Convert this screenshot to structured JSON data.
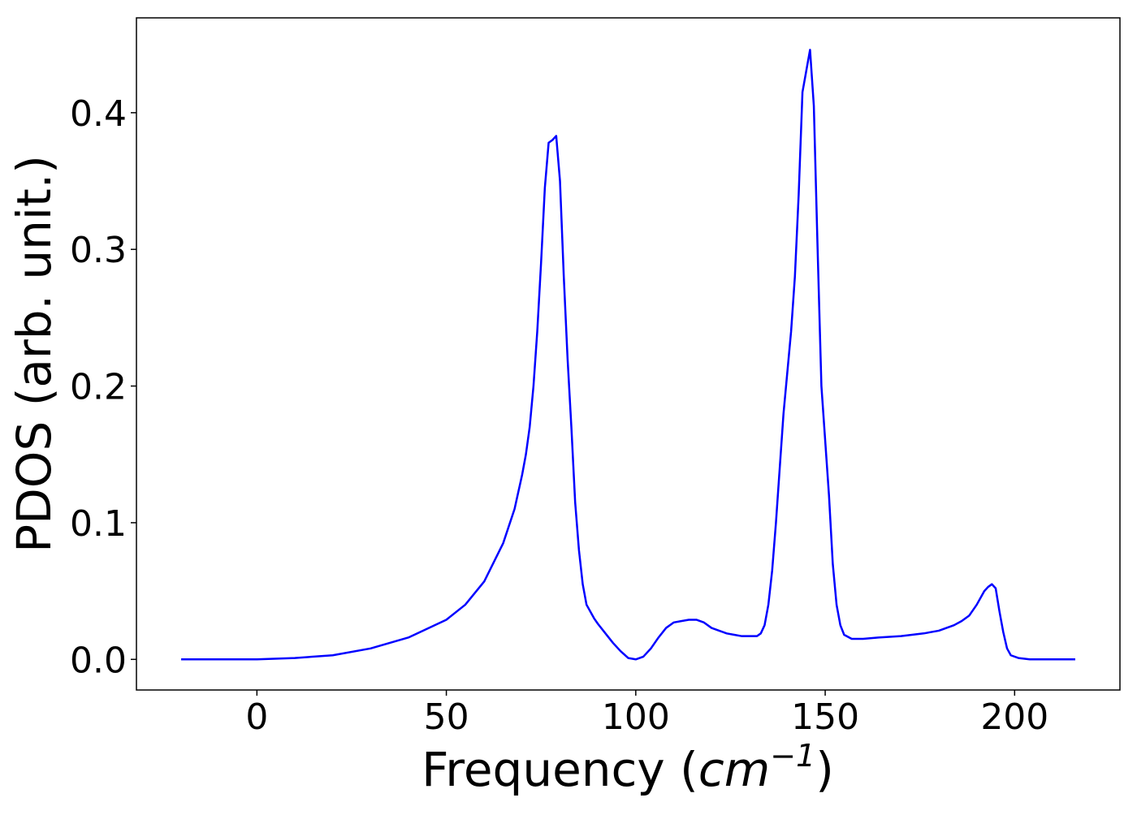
{
  "chart_data": {
    "type": "line",
    "xlabel": {
      "text": "Frequency (",
      "math": "cm",
      "sup": "−1",
      "close": ")"
    },
    "ylabel": "PDOS (arb. unit.)",
    "xlim": [
      -31.8,
      227.8
    ],
    "xticks": [
      0,
      50,
      100,
      150,
      200
    ],
    "ylim": [
      -0.0224,
      0.4694
    ],
    "yticks": [
      {
        "value": 0,
        "label": "0.0"
      },
      0.1,
      0.2,
      0.3,
      0.4
    ],
    "x": [
      -20,
      -10,
      0,
      10,
      20,
      30,
      40,
      50,
      55,
      60,
      65,
      68,
      70,
      71,
      72,
      73,
      74,
      75,
      76,
      77,
      78,
      79,
      80,
      81,
      82,
      83,
      84,
      85,
      86,
      87,
      89,
      90,
      92,
      94,
      96,
      98,
      100,
      102,
      104,
      106,
      108,
      110,
      112,
      114,
      116,
      118,
      120,
      122,
      124,
      126,
      128,
      130,
      132,
      133,
      134,
      135,
      136,
      137,
      138,
      139,
      141,
      142,
      143,
      144,
      146,
      147,
      148,
      149,
      151,
      152,
      153,
      154,
      155,
      157,
      160,
      164,
      170,
      176,
      180,
      184,
      186,
      188,
      190,
      192,
      193,
      194,
      195,
      196,
      197,
      198,
      199,
      201,
      204,
      216
    ],
    "series": [
      {
        "name": "PDOS",
        "color": "#0000ff",
        "values": [
          0,
          0,
          0,
          0.001,
          0.003,
          0.008,
          0.016,
          0.029,
          0.04,
          0.057,
          0.085,
          0.11,
          0.135,
          0.15,
          0.17,
          0.2,
          0.24,
          0.29,
          0.345,
          0.378,
          0.38,
          0.383,
          0.35,
          0.28,
          0.22,
          0.17,
          0.115,
          0.08,
          0.055,
          0.04,
          0.03,
          0.026,
          0.019,
          0.012,
          0.006,
          0.001,
          0,
          0.002,
          0.008,
          0.016,
          0.023,
          0.027,
          0.028,
          0.029,
          0.029,
          0.027,
          0.023,
          0.021,
          0.019,
          0.018,
          0.017,
          0.017,
          0.017,
          0.019,
          0.025,
          0.04,
          0.065,
          0.1,
          0.14,
          0.18,
          0.24,
          0.28,
          0.34,
          0.415,
          0.446,
          0.405,
          0.3,
          0.2,
          0.12,
          0.07,
          0.04,
          0.025,
          0.018,
          0.015,
          0.015,
          0.016,
          0.017,
          0.019,
          0.021,
          0.025,
          0.028,
          0.032,
          0.04,
          0.05,
          0.053,
          0.055,
          0.052,
          0.035,
          0.02,
          0.008,
          0.003,
          0.001,
          0,
          0
        ]
      }
    ]
  }
}
